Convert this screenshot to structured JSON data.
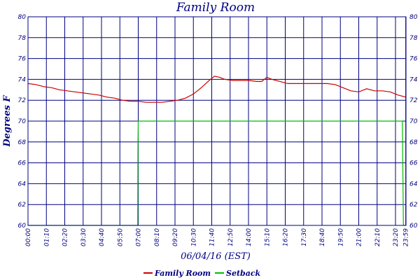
{
  "chart_data": {
    "type": "line",
    "title": "Family Room",
    "xlabel": "06/04/16 (EST)",
    "ylabel": "Degrees F",
    "ylim": [
      60,
      80
    ],
    "y_ticks": [
      60,
      62,
      64,
      66,
      68,
      70,
      72,
      74,
      76,
      78,
      80
    ],
    "y_tick_labels_left": [
      "60",
      "62",
      "64",
      "66",
      "68",
      "70",
      "72",
      "74",
      "76",
      "78",
      "80"
    ],
    "y_tick_labels_right": [
      "60",
      "62",
      "64",
      "66",
      "68",
      "70",
      "72",
      "74",
      "76",
      "78",
      "80"
    ],
    "x_tick_labels": [
      "00:00",
      "01:10",
      "02:20",
      "03:30",
      "04:40",
      "05:50",
      "07:00",
      "08:10",
      "09:20",
      "10:30",
      "11:40",
      "12:50",
      "14:00",
      "15:10",
      "16:20",
      "17:30",
      "18:40",
      "19:50",
      "21:00",
      "22:10",
      "23:20",
      "23:59"
    ],
    "xlim_hours": [
      0,
      24
    ],
    "grid": true,
    "legend_position": "bottom",
    "colors": {
      "frame": "#000080",
      "family_room": "#cc0000",
      "setback": "#00bb00"
    },
    "series": [
      {
        "name": "Family Room",
        "x": [
          "00:00",
          "00:30",
          "01:00",
          "01:30",
          "02:00",
          "02:30",
          "03:00",
          "03:30",
          "04:00",
          "04:30",
          "05:00",
          "05:30",
          "06:00",
          "06:30",
          "07:00",
          "07:30",
          "08:00",
          "08:30",
          "09:00",
          "09:30",
          "10:00",
          "10:30",
          "11:00",
          "11:30",
          "11:50",
          "12:10",
          "12:30",
          "13:00",
          "13:30",
          "14:00",
          "14:30",
          "14:50",
          "15:10",
          "15:30",
          "16:00",
          "16:30",
          "17:00",
          "17:30",
          "18:00",
          "18:30",
          "19:00",
          "19:30",
          "20:00",
          "20:30",
          "21:00",
          "21:30",
          "22:00",
          "22:30",
          "23:00",
          "23:30",
          "23:59"
        ],
        "values": [
          73.6,
          73.5,
          73.3,
          73.2,
          73.0,
          72.9,
          72.8,
          72.7,
          72.6,
          72.5,
          72.3,
          72.2,
          72.0,
          71.9,
          71.9,
          71.8,
          71.8,
          71.8,
          71.9,
          72.0,
          72.2,
          72.6,
          73.2,
          73.9,
          74.3,
          74.2,
          74.0,
          73.9,
          73.9,
          73.9,
          73.8,
          73.8,
          74.2,
          74.0,
          73.8,
          73.6,
          73.6,
          73.6,
          73.6,
          73.6,
          73.6,
          73.5,
          73.2,
          72.9,
          72.8,
          73.1,
          72.9,
          72.9,
          72.8,
          72.5,
          72.3
        ]
      },
      {
        "name": "Setback",
        "x": [
          "00:00",
          "06:58",
          "06:59",
          "07:00",
          "07:01",
          "23:40",
          "23:46",
          "23:50",
          "23:59"
        ],
        "values": [
          60,
          60,
          67.5,
          70,
          70,
          70,
          70,
          60,
          60
        ]
      }
    ]
  }
}
